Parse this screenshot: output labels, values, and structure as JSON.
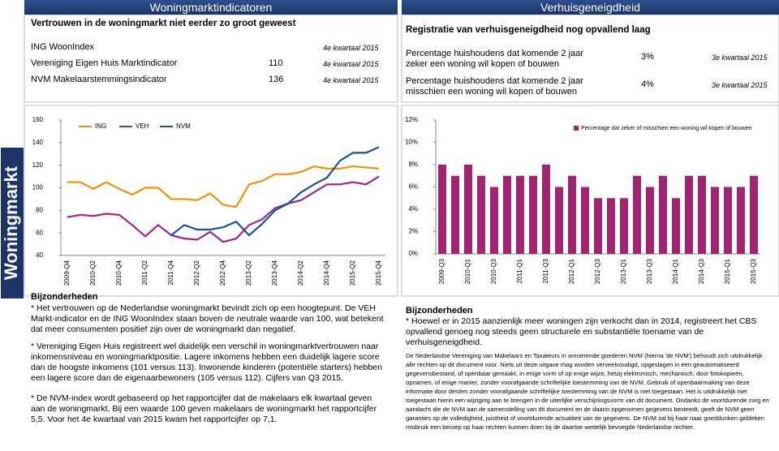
{
  "side_label": "Woningmarkt",
  "left": {
    "header": "Woningmarktindicatoren",
    "subtitle": "Vertrouwen in de woningmarkt niet eerder zo groot geweest",
    "indicators": [
      {
        "name": "ING WoonIndex",
        "period": "4e kwartaal 2015"
      },
      {
        "name": "Vereniging Eigen Huis Marktindicator",
        "value": "110",
        "period": "4e kwartaal 2015"
      },
      {
        "name": "NVM Makelaarstemmingsindicator",
        "value": "136",
        "period": "4e kwartaal 2015"
      }
    ],
    "notes_title": "Bijzonderheden",
    "notes": [
      "* Het vertrouwen op de Nederlandse woningmarkt bevindt zich op een hoogtepunt. De VEH Markt-indicator en de ING WoonIndex staan boven de neutrale waarde van 100, wat betekent dat meer consumenten positief zijn over de woningmarkt dan negatief.",
      "* Vereniging Eigen Huis registreert wel duidelijk een verschil in woningmarktvertrouwen naar inkomensniveau en woningmarktpositie. Lagere inkomens hebben een duidelijk lagere score dan de hoogste inkomens (101 versus 113). Inwonende kinderen (potentiële starters) hebben een lagere score dan de eigenaarbewoners (105 versus 112). Cijfers van Q3 2015.",
      "* De NVM-index wordt gebaseerd op het rapportcijfer dat de makelaars elk kwartaal geven aan de woningmarkt. Bij een waarde 100 geven makelaars de woningmarkt het rapportcijfer 5,5. Voor het 4e kwartaal van 2015 kwam het rapportcijfer op 7,1."
    ]
  },
  "right": {
    "header": "Verhuisgeneigdheid",
    "subtitle": "Registratie van verhuisgeneigdheid nog opvallend laag",
    "rows": [
      {
        "text": "Percentage huishoudens dat komende 2 jaar zeker een woning wil kopen of bouwen",
        "value": "3%",
        "period": "3e kwartaal 2015"
      },
      {
        "text": "Percentage huishoudens dat komende 2 jaar misschien een woning wil kopen of bouwen",
        "value": "4%",
        "period": "3e kwartaal 2015"
      }
    ],
    "notes_title": "Bijzonderheden",
    "notes": [
      "* Hoewel er in 2015 aanzienlijk meer woningen zijn verkocht dan in 2014, registreert het CBS opvallend genoeg nog steeds geen structurele en substantiële toename van de verhuisgeneigdheid."
    ],
    "disclaimer": "De Nederlandse Vereniging van Makelaars en Taxateurs in onroerende goederen NVM (hierna 'de NVM') behoudt zich uitdrukkelijk alle rechten op dit document voor. Niets uit deze uitgave mag worden verveelvoudigd, opgeslagen in een geautomatiseerd gegevensbestand, of openbaar gemaakt, in enige vorm of op enige wijze, hetzij elektronisch, mechanisch, door fotokopieën, opnamen, of enige manier, zonder voorafgaande schriftelijke toestemming van de NVM. Gebruik of openbaarmaking van deze informatie door derden zonder voorafgaande schriftelijke toestemming van de NVM is niet toegestaan. Het is uitdrukkelijk niet toegestaan hierin een wijziging aan te brengen in de uiterlijke verschijningsvorm van dit document. Ondanks de voortdurende zorg en aandacht die de NVM aan de samenstelling van dit document en de daarin opgenomen gegevens besteedt, geeft de NVM geen garanties op de volledigheid, juistheid of voortdurende actualiteit van de gegevens. De NVM zal bij haar naar goeddunken gebleken misbruik een beroep op haar rechten kunnen doen bij de daartoe wettelijk bevoegde Nederlandse rechter."
  },
  "chart_data": [
    {
      "type": "line",
      "categories": [
        "2009-Q4",
        null,
        "2010-Q2",
        null,
        "2010-Q4",
        null,
        "2011-Q2",
        null,
        "2011-Q4",
        null,
        "2012-Q2",
        null,
        "2012-Q4",
        null,
        "2013-Q2",
        null,
        "2013-Q4",
        null,
        "2014-Q2",
        null,
        "2014-Q4",
        null,
        "2015-Q2",
        null,
        "2015-Q4"
      ],
      "series": [
        {
          "name": "ING",
          "color": "#f39200",
          "values": [
            105,
            105,
            99,
            105,
            99,
            94,
            100,
            100,
            90,
            90,
            89,
            95,
            85,
            83,
            103,
            106,
            112,
            112,
            114,
            119,
            117,
            117,
            119,
            118,
            117
          ]
        },
        {
          "name": "VEH",
          "color": "#a3238e",
          "values": [
            74,
            76,
            75,
            77,
            76,
            67,
            57,
            67,
            58,
            55,
            54,
            61,
            52,
            55,
            67,
            72,
            82,
            86,
            89,
            96,
            103,
            103,
            105,
            103,
            110
          ]
        },
        {
          "name": "NVM",
          "color": "#1a4e9f",
          "values": [
            null,
            null,
            null,
            null,
            null,
            null,
            null,
            null,
            58,
            67,
            63,
            63,
            65,
            70,
            58,
            68,
            80,
            86,
            96,
            103,
            109,
            124,
            131,
            131,
            136
          ]
        }
      ],
      "ylim": [
        40,
        160
      ],
      "yticks": [
        40,
        60,
        80,
        100,
        120,
        140,
        160
      ],
      "grid": false,
      "legend": "top-left"
    },
    {
      "type": "bar",
      "categories": [
        "2009-Q3",
        null,
        "2010-Q1",
        null,
        "2010-Q3",
        null,
        "2011-Q1",
        null,
        "2011-Q3",
        null,
        "2012-Q1",
        null,
        "2012-Q3",
        null,
        "2013-Q1",
        null,
        "2013-Q3",
        null,
        "2014-Q1",
        null,
        "2014-Q3",
        null,
        "2015-Q1",
        null,
        "2015-Q3"
      ],
      "series": [
        {
          "name": "Percentage dat zeker of misschien een woning wil kopen of bouwen",
          "color": "#a0246f",
          "values": [
            8,
            7,
            8,
            7,
            6,
            7,
            7,
            7,
            8,
            6,
            7,
            6,
            5,
            5,
            5,
            7,
            6,
            7,
            5,
            7,
            7,
            6,
            6,
            6,
            7
          ]
        }
      ],
      "ylim": [
        0,
        12
      ],
      "yticks": [
        {
          "value": 0,
          "label": "0%"
        },
        {
          "value": 2,
          "label": "2%"
        },
        {
          "value": 4,
          "label": "4%"
        },
        {
          "value": 6,
          "label": "6%"
        },
        {
          "value": 8,
          "label": "8%"
        },
        {
          "value": 10,
          "label": "10%"
        },
        {
          "value": 12,
          "label": "12%"
        }
      ],
      "grid": false,
      "legend": "top-right"
    }
  ]
}
